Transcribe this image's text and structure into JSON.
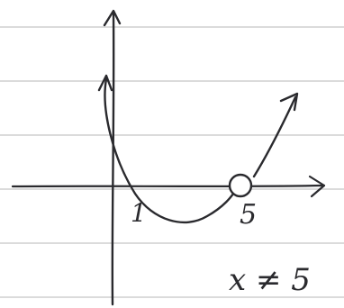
{
  "diagram": {
    "paper": {
      "background": "#ffffff",
      "rule_color": "#cfcfcf",
      "ink_color": "#2a2a2e"
    },
    "labels": {
      "x_intercept_1": "1",
      "x_intercept_5": "5",
      "note": "x ≠ 5"
    },
    "curve": {
      "type": "upward parabola",
      "x_intercepts": [
        1,
        5
      ],
      "open_circle_at": 5
    }
  }
}
